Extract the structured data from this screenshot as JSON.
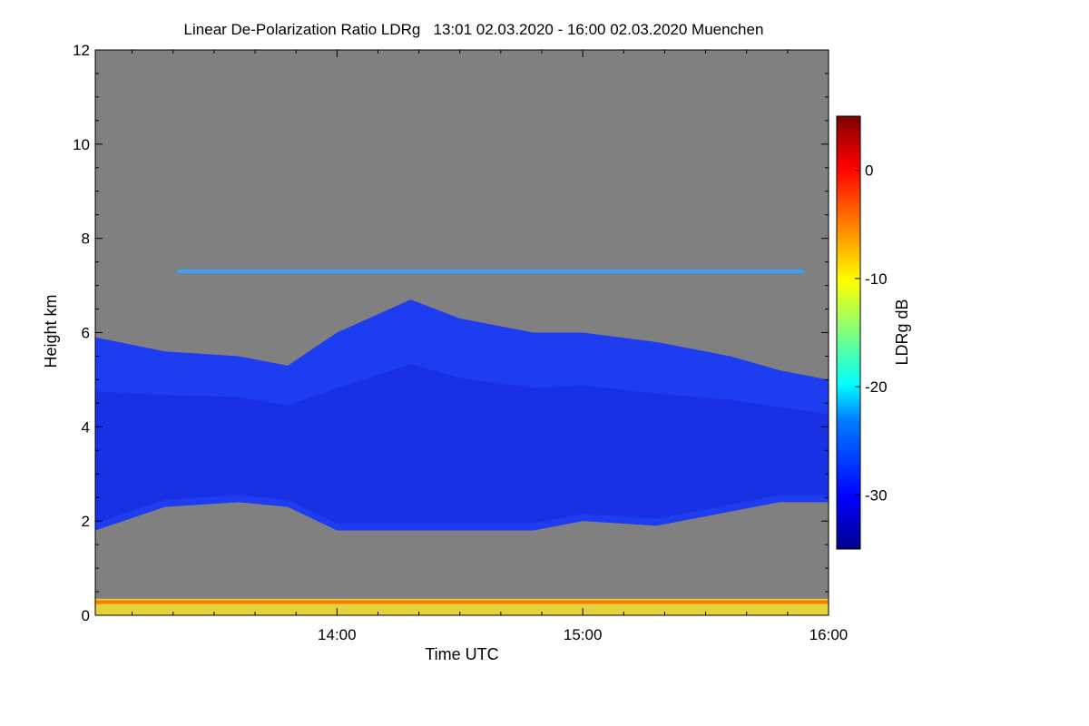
{
  "chart_data": {
    "type": "heatmap",
    "title": "Linear De-Polarization Ratio LDRg   13:01 02.03.2020 - 16:00 02.03.2020 Muenchen",
    "xlabel": "Time UTC",
    "ylabel": "Height km",
    "x_range_hours": [
      13.0167,
      16.0
    ],
    "x_ticks": [
      {
        "value": 14.0,
        "label": "14:00"
      },
      {
        "value": 15.0,
        "label": "15:00"
      },
      {
        "value": 16.0,
        "label": "16:00"
      }
    ],
    "ylim": [
      0,
      12
    ],
    "y_ticks": [
      {
        "value": 0,
        "label": "0"
      },
      {
        "value": 2,
        "label": "2"
      },
      {
        "value": 4,
        "label": "4"
      },
      {
        "value": 6,
        "label": "6"
      },
      {
        "value": 8,
        "label": "8"
      },
      {
        "value": 10,
        "label": "10"
      },
      {
        "value": 12,
        "label": "12"
      }
    ],
    "colorbar": {
      "label": "LDRg dB",
      "range": [
        -35,
        5
      ],
      "ticks": [
        {
          "value": 0,
          "label": "0"
        },
        {
          "value": -10,
          "label": "-10"
        },
        {
          "value": -20,
          "label": "-20"
        },
        {
          "value": -30,
          "label": "-30"
        }
      ]
    },
    "colors": {
      "no_data": "#808080",
      "cloud_low_ldr": "#1e3cf0",
      "cloud_core": "#1428dc",
      "near_surface": "#ff7a00"
    },
    "cloud_layer": {
      "description": "main cloud layer",
      "ldr_db_typical": -30,
      "times_h": [
        13.0167,
        13.3,
        13.6,
        13.8,
        14.0,
        14.3,
        14.5,
        14.8,
        15.0,
        15.3,
        15.6,
        15.8,
        16.0
      ],
      "top_km": [
        5.9,
        5.6,
        5.5,
        5.3,
        6.0,
        6.7,
        6.3,
        6.0,
        6.0,
        5.8,
        5.5,
        5.2,
        5.0
      ],
      "base_km": [
        1.8,
        2.3,
        2.4,
        2.3,
        1.8,
        1.8,
        1.8,
        1.8,
        2.0,
        1.9,
        2.2,
        2.4,
        2.4
      ]
    },
    "thin_layer": {
      "height_km": 7.3,
      "ldr_db": -22
    },
    "surface_layer": {
      "height_km": [
        0.0,
        0.35
      ],
      "ldr_db": -5
    }
  }
}
